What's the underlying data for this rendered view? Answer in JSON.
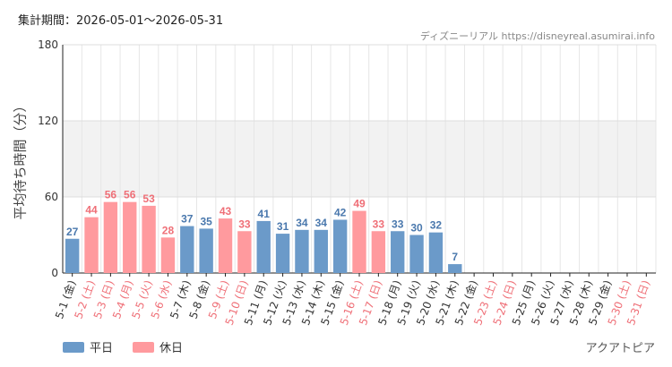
{
  "header": {
    "period_label": "集計期間：2026-05-01～2026-05-31",
    "credit": "ディズニーリアル https://disneyreal.asumirai.info"
  },
  "footer": {
    "attraction": "アクアトピア"
  },
  "colors": {
    "weekday": "#6b9ac9",
    "holiday": "#ff9a9e",
    "weekday_text": "#4a78ad",
    "holiday_text": "#ef6f77"
  },
  "chart_data": {
    "type": "bar",
    "title": "",
    "xlabel": "",
    "ylabel": "平均待ち時間（分）",
    "ylim": [
      0,
      180
    ],
    "yticks": [
      0,
      60,
      120,
      180
    ],
    "grid": true,
    "legend_position": "bottom-left",
    "legend": [
      {
        "key": "weekday",
        "label": "平日"
      },
      {
        "key": "holiday",
        "label": "休日"
      }
    ],
    "categories": [
      "5-1 (金)",
      "5-2 (土)",
      "5-3 (日)",
      "5-4 (月)",
      "5-5 (火)",
      "5-6 (水)",
      "5-7 (木)",
      "5-8 (金)",
      "5-9 (土)",
      "5-10 (日)",
      "5-11 (月)",
      "5-12 (火)",
      "5-13 (水)",
      "5-14 (木)",
      "5-15 (金)",
      "5-16 (土)",
      "5-17 (日)",
      "5-18 (月)",
      "5-19 (火)",
      "5-20 (水)",
      "5-21 (木)",
      "5-22 (金)",
      "5-23 (土)",
      "5-24 (日)",
      "5-25 (月)",
      "5-26 (火)",
      "5-27 (水)",
      "5-28 (木)",
      "5-29 (金)",
      "5-30 (土)",
      "5-31 (日)"
    ],
    "values": [
      27,
      44,
      56,
      56,
      53,
      28,
      37,
      35,
      43,
      33,
      41,
      31,
      34,
      34,
      42,
      49,
      33,
      33,
      30,
      32,
      7,
      null,
      null,
      null,
      null,
      null,
      null,
      null,
      null,
      null,
      null
    ],
    "day_type": [
      "weekday",
      "holiday",
      "holiday",
      "holiday",
      "holiday",
      "holiday",
      "weekday",
      "weekday",
      "holiday",
      "holiday",
      "weekday",
      "weekday",
      "weekday",
      "weekday",
      "weekday",
      "holiday",
      "holiday",
      "weekday",
      "weekday",
      "weekday",
      "weekday",
      "weekday",
      "holiday",
      "holiday",
      "weekday",
      "weekday",
      "weekday",
      "weekday",
      "weekday",
      "holiday",
      "holiday"
    ]
  }
}
